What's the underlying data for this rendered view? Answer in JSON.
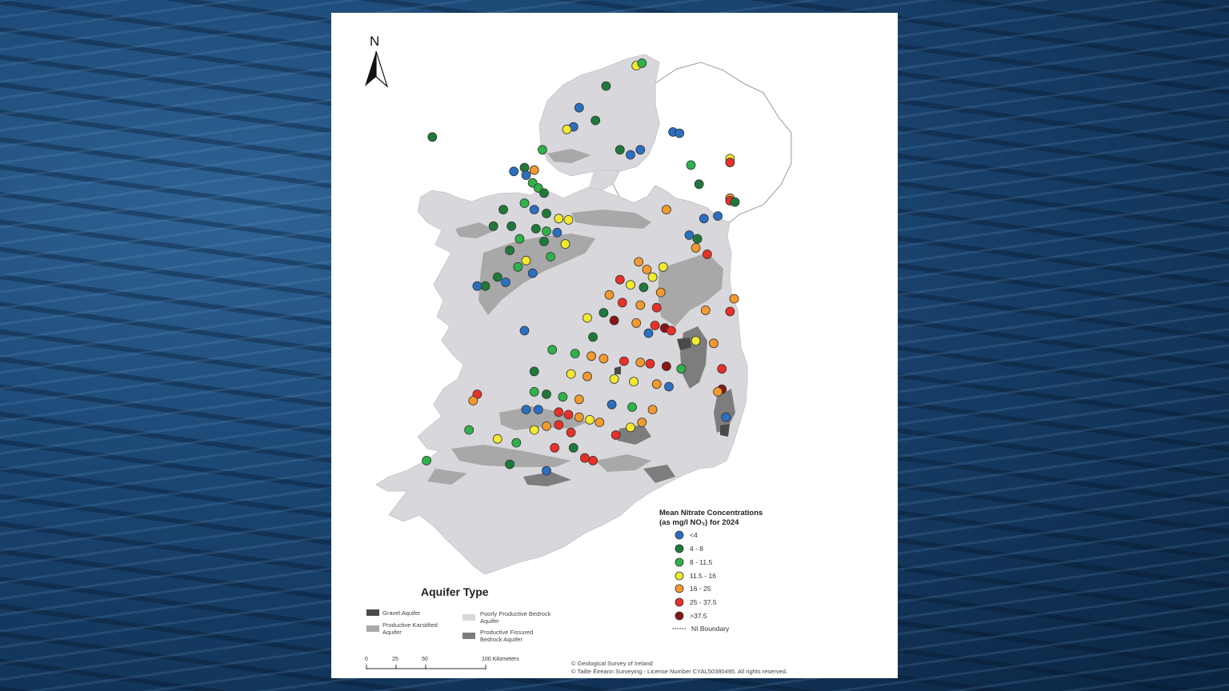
{
  "north_arrow": {
    "letter": "N"
  },
  "legend": {
    "title_line1": "Mean Nitrate Concentrations",
    "title_line2": "(as mg/l NO₃) for 2024",
    "classes": [
      {
        "label": "<4",
        "color": "#2b6fc1"
      },
      {
        "label": "4 - 8",
        "color": "#1f7a3a"
      },
      {
        "label": "8 - 11.5",
        "color": "#2fb24a"
      },
      {
        "label": "11.5 - 16",
        "color": "#f2ea2e"
      },
      {
        "label": "16 - 25",
        "color": "#f29a2e"
      },
      {
        "label": "25 - 37.5",
        "color": "#e8302a"
      },
      {
        "label": ">37.5",
        "color": "#8b1515"
      }
    ],
    "ni_boundary": "NI Boundary"
  },
  "aquifer": {
    "title": "Aquifer Type",
    "types": [
      {
        "label": "Gravel Aquifer",
        "color": "#4a4a4a"
      },
      {
        "label": "Productive Karstified Aquifer",
        "color": "#a8a8a8"
      },
      {
        "label": "Poorly Productive Bedrock Aquifer",
        "color": "#d8d8dc"
      },
      {
        "label": "Productive Fissured Bedrock Aquifer",
        "color": "#7d7d7d"
      }
    ]
  },
  "scale_bar": {
    "labels": [
      "0",
      "25",
      "50",
      "100 Kilometers"
    ]
  },
  "credits": {
    "line1": "© Geological Survey of Ireland",
    "line2": "© Tailte Éireann Surveying - License Number CYAL50380495. All rights reserved."
  },
  "sites": [
    {
      "lat": 55.38,
      "lon": -7.35,
      "class": 3
    },
    {
      "lat": 55.4,
      "lon": -7.28,
      "class": 2
    },
    {
      "lat": 55.22,
      "lon": -7.72,
      "class": 1
    },
    {
      "lat": 55.05,
      "lon": -8.05,
      "class": 0
    },
    {
      "lat": 54.9,
      "lon": -8.12,
      "class": 0
    },
    {
      "lat": 54.88,
      "lon": -8.2,
      "class": 3
    },
    {
      "lat": 54.95,
      "lon": -7.85,
      "class": 1
    },
    {
      "lat": 54.82,
      "lon": -9.85,
      "class": 1
    },
    {
      "lat": 54.86,
      "lon": -6.9,
      "class": 0
    },
    {
      "lat": 54.85,
      "lon": -6.82,
      "class": 0
    },
    {
      "lat": 54.72,
      "lon": -7.55,
      "class": 1
    },
    {
      "lat": 54.72,
      "lon": -7.3,
      "class": 0
    },
    {
      "lat": 54.68,
      "lon": -7.42,
      "class": 0
    },
    {
      "lat": 54.65,
      "lon": -6.2,
      "class": 3
    },
    {
      "lat": 54.62,
      "lon": -6.2,
      "class": 5
    },
    {
      "lat": 54.6,
      "lon": -6.68,
      "class": 2
    },
    {
      "lat": 54.72,
      "lon": -8.5,
      "class": 2
    },
    {
      "lat": 54.58,
      "lon": -8.72,
      "class": 1
    },
    {
      "lat": 54.55,
      "lon": -8.85,
      "class": 0
    },
    {
      "lat": 54.56,
      "lon": -8.6,
      "class": 4
    },
    {
      "lat": 54.52,
      "lon": -8.7,
      "class": 0
    },
    {
      "lat": 54.46,
      "lon": -8.62,
      "class": 2
    },
    {
      "lat": 54.42,
      "lon": -8.55,
      "class": 2
    },
    {
      "lat": 54.38,
      "lon": -8.48,
      "class": 1
    },
    {
      "lat": 54.45,
      "lon": -6.58,
      "class": 1
    },
    {
      "lat": 54.34,
      "lon": -6.2,
      "class": 4
    },
    {
      "lat": 54.32,
      "lon": -6.2,
      "class": 5
    },
    {
      "lat": 54.31,
      "lon": -6.14,
      "class": 1
    },
    {
      "lat": 54.25,
      "lon": -8.98,
      "class": 1
    },
    {
      "lat": 54.3,
      "lon": -8.72,
      "class": 2
    },
    {
      "lat": 54.25,
      "lon": -8.6,
      "class": 0
    },
    {
      "lat": 54.22,
      "lon": -8.45,
      "class": 1
    },
    {
      "lat": 54.18,
      "lon": -8.3,
      "class": 3
    },
    {
      "lat": 54.17,
      "lon": -8.18,
      "class": 3
    },
    {
      "lat": 54.12,
      "lon": -9.1,
      "class": 1
    },
    {
      "lat": 54.12,
      "lon": -8.88,
      "class": 1
    },
    {
      "lat": 54.1,
      "lon": -8.58,
      "class": 1
    },
    {
      "lat": 54.08,
      "lon": -8.45,
      "class": 2
    },
    {
      "lat": 54.07,
      "lon": -8.32,
      "class": 0
    },
    {
      "lat": 54.02,
      "lon": -8.78,
      "class": 2
    },
    {
      "lat": 54.0,
      "lon": -8.48,
      "class": 1
    },
    {
      "lat": 53.98,
      "lon": -8.22,
      "class": 3
    },
    {
      "lat": 54.05,
      "lon": -6.7,
      "class": 0
    },
    {
      "lat": 54.02,
      "lon": -6.6,
      "class": 1
    },
    {
      "lat": 54.18,
      "lon": -6.52,
      "class": 0
    },
    {
      "lat": 54.2,
      "lon": -6.35,
      "class": 0
    },
    {
      "lat": 54.25,
      "lon": -6.98,
      "class": 4
    },
    {
      "lat": 53.93,
      "lon": -8.9,
      "class": 1
    },
    {
      "lat": 53.88,
      "lon": -8.4,
      "class": 2
    },
    {
      "lat": 53.85,
      "lon": -8.7,
      "class": 3
    },
    {
      "lat": 53.8,
      "lon": -8.8,
      "class": 2
    },
    {
      "lat": 53.72,
      "lon": -9.05,
      "class": 1
    },
    {
      "lat": 53.68,
      "lon": -8.95,
      "class": 0
    },
    {
      "lat": 53.75,
      "lon": -8.62,
      "class": 0
    },
    {
      "lat": 53.65,
      "lon": -9.2,
      "class": 1
    },
    {
      "lat": 53.65,
      "lon": -9.3,
      "class": 0
    },
    {
      "lat": 53.95,
      "lon": -6.62,
      "class": 4
    },
    {
      "lat": 53.9,
      "lon": -6.48,
      "class": 5
    },
    {
      "lat": 53.84,
      "lon": -7.32,
      "class": 4
    },
    {
      "lat": 53.8,
      "lon": -7.02,
      "class": 3
    },
    {
      "lat": 53.78,
      "lon": -7.22,
      "class": 4
    },
    {
      "lat": 53.72,
      "lon": -7.15,
      "class": 3
    },
    {
      "lat": 53.7,
      "lon": -7.55,
      "class": 5
    },
    {
      "lat": 53.66,
      "lon": -7.42,
      "class": 3
    },
    {
      "lat": 53.64,
      "lon": -7.26,
      "class": 1
    },
    {
      "lat": 53.6,
      "lon": -7.05,
      "class": 4
    },
    {
      "lat": 53.58,
      "lon": -7.68,
      "class": 4
    },
    {
      "lat": 53.52,
      "lon": -7.52,
      "class": 5
    },
    {
      "lat": 53.5,
      "lon": -7.3,
      "class": 4
    },
    {
      "lat": 53.48,
      "lon": -7.1,
      "class": 5
    },
    {
      "lat": 53.46,
      "lon": -6.5,
      "class": 4
    },
    {
      "lat": 53.44,
      "lon": -7.75,
      "class": 1
    },
    {
      "lat": 53.4,
      "lon": -7.95,
      "class": 3
    },
    {
      "lat": 53.38,
      "lon": -7.62,
      "class": 6
    },
    {
      "lat": 53.36,
      "lon": -7.35,
      "class": 4
    },
    {
      "lat": 53.34,
      "lon": -7.12,
      "class": 5
    },
    {
      "lat": 53.32,
      "lon": -7.0,
      "class": 6
    },
    {
      "lat": 53.3,
      "lon": -6.92,
      "class": 5
    },
    {
      "lat": 53.28,
      "lon": -7.2,
      "class": 0
    },
    {
      "lat": 53.25,
      "lon": -7.88,
      "class": 1
    },
    {
      "lat": 53.22,
      "lon": -6.62,
      "class": 3
    },
    {
      "lat": 53.2,
      "lon": -6.4,
      "class": 4
    },
    {
      "lat": 53.45,
      "lon": -6.2,
      "class": 5
    },
    {
      "lat": 53.55,
      "lon": -6.15,
      "class": 4
    },
    {
      "lat": 53.3,
      "lon": -8.72,
      "class": 0
    },
    {
      "lat": 53.15,
      "lon": -8.38,
      "class": 2
    },
    {
      "lat": 53.12,
      "lon": -8.1,
      "class": 2
    },
    {
      "lat": 53.1,
      "lon": -7.9,
      "class": 4
    },
    {
      "lat": 53.08,
      "lon": -7.75,
      "class": 4
    },
    {
      "lat": 53.06,
      "lon": -7.5,
      "class": 5
    },
    {
      "lat": 53.05,
      "lon": -7.3,
      "class": 4
    },
    {
      "lat": 53.04,
      "lon": -7.18,
      "class": 5
    },
    {
      "lat": 53.02,
      "lon": -6.98,
      "class": 6
    },
    {
      "lat": 53.0,
      "lon": -6.8,
      "class": 2
    },
    {
      "lat": 53.0,
      "lon": -6.3,
      "class": 5
    },
    {
      "lat": 52.98,
      "lon": -8.6,
      "class": 1
    },
    {
      "lat": 52.96,
      "lon": -8.15,
      "class": 3
    },
    {
      "lat": 52.94,
      "lon": -7.95,
      "class": 4
    },
    {
      "lat": 52.92,
      "lon": -7.62,
      "class": 3
    },
    {
      "lat": 52.9,
      "lon": -7.38,
      "class": 3
    },
    {
      "lat": 52.88,
      "lon": -7.1,
      "class": 4
    },
    {
      "lat": 52.86,
      "lon": -6.95,
      "class": 0
    },
    {
      "lat": 52.84,
      "lon": -6.3,
      "class": 6
    },
    {
      "lat": 52.82,
      "lon": -6.35,
      "class": 4
    },
    {
      "lat": 52.8,
      "lon": -9.3,
      "class": 5
    },
    {
      "lat": 52.75,
      "lon": -9.35,
      "class": 4
    },
    {
      "lat": 52.82,
      "lon": -8.6,
      "class": 2
    },
    {
      "lat": 52.8,
      "lon": -8.45,
      "class": 1
    },
    {
      "lat": 52.78,
      "lon": -8.25,
      "class": 2
    },
    {
      "lat": 52.76,
      "lon": -8.05,
      "class": 4
    },
    {
      "lat": 52.72,
      "lon": -7.65,
      "class": 0
    },
    {
      "lat": 52.7,
      "lon": -7.4,
      "class": 2
    },
    {
      "lat": 52.68,
      "lon": -7.15,
      "class": 4
    },
    {
      "lat": 52.62,
      "lon": -6.25,
      "class": 0
    },
    {
      "lat": 52.68,
      "lon": -8.7,
      "class": 0
    },
    {
      "lat": 52.68,
      "lon": -8.55,
      "class": 0
    },
    {
      "lat": 52.66,
      "lon": -8.3,
      "class": 5
    },
    {
      "lat": 52.64,
      "lon": -8.18,
      "class": 5
    },
    {
      "lat": 52.62,
      "lon": -8.05,
      "class": 4
    },
    {
      "lat": 52.6,
      "lon": -7.92,
      "class": 3
    },
    {
      "lat": 52.58,
      "lon": -7.8,
      "class": 4
    },
    {
      "lat": 52.56,
      "lon": -8.3,
      "class": 5
    },
    {
      "lat": 52.55,
      "lon": -8.45,
      "class": 4
    },
    {
      "lat": 52.52,
      "lon": -8.6,
      "class": 3
    },
    {
      "lat": 52.5,
      "lon": -8.15,
      "class": 5
    },
    {
      "lat": 52.48,
      "lon": -7.6,
      "class": 5
    },
    {
      "lat": 52.54,
      "lon": -7.42,
      "class": 3
    },
    {
      "lat": 52.58,
      "lon": -7.28,
      "class": 4
    },
    {
      "lat": 52.52,
      "lon": -9.4,
      "class": 2
    },
    {
      "lat": 52.45,
      "lon": -9.05,
      "class": 3
    },
    {
      "lat": 52.42,
      "lon": -8.82,
      "class": 2
    },
    {
      "lat": 52.38,
      "lon": -8.35,
      "class": 5
    },
    {
      "lat": 52.38,
      "lon": -8.12,
      "class": 1
    },
    {
      "lat": 52.3,
      "lon": -7.98,
      "class": 5
    },
    {
      "lat": 52.28,
      "lon": -7.88,
      "class": 5
    },
    {
      "lat": 52.28,
      "lon": -9.92,
      "class": 2
    },
    {
      "lat": 52.25,
      "lon": -8.9,
      "class": 1
    },
    {
      "lat": 52.2,
      "lon": -8.45,
      "class": 0
    }
  ]
}
